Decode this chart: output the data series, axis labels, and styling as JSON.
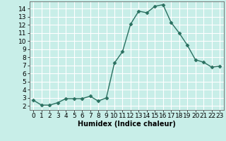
{
  "x": [
    0,
    1,
    2,
    3,
    4,
    5,
    6,
    7,
    8,
    9,
    10,
    11,
    12,
    13,
    14,
    15,
    16,
    17,
    18,
    19,
    20,
    21,
    22,
    23
  ],
  "y": [
    2.7,
    2.1,
    2.1,
    2.4,
    2.9,
    2.9,
    2.9,
    3.2,
    2.6,
    3.0,
    7.3,
    8.7,
    12.1,
    13.7,
    13.5,
    14.3,
    14.5,
    12.3,
    11.0,
    9.5,
    7.7,
    7.4,
    6.8,
    6.9
  ],
  "line_color": "#2a7060",
  "marker": "D",
  "marker_size": 2.5,
  "bg_color": "#c8eee8",
  "grid_color": "#ffffff",
  "xlabel": "Humidex (Indice chaleur)",
  "xlim": [
    -0.5,
    23.5
  ],
  "ylim": [
    1.5,
    14.9
  ],
  "xticks": [
    0,
    1,
    2,
    3,
    4,
    5,
    6,
    7,
    8,
    9,
    10,
    11,
    12,
    13,
    14,
    15,
    16,
    17,
    18,
    19,
    20,
    21,
    22,
    23
  ],
  "yticks": [
    2,
    3,
    4,
    5,
    6,
    7,
    8,
    9,
    10,
    11,
    12,
    13,
    14
  ],
  "xlabel_fontsize": 7,
  "tick_fontsize": 6.5
}
